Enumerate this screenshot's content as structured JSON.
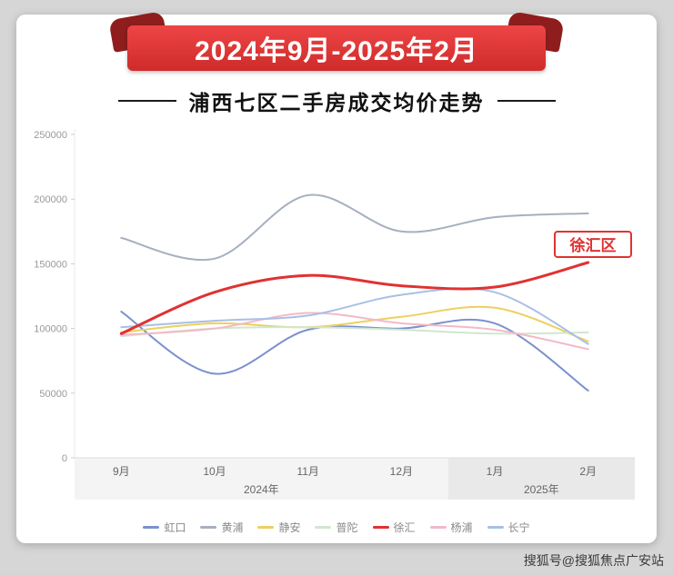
{
  "banner": {
    "text": "2024年9月-2025年2月"
  },
  "title": "浦西七区二手房成交均价走势",
  "annotation": {
    "text": "徐汇区",
    "series": "徐汇"
  },
  "watermark": "搜狐号@搜狐焦点广安站",
  "colors": {
    "banner_light": "#ee4545",
    "banner_dark": "#cf2b2b",
    "banner_fold": "#8f1d1d",
    "accent": "#e03231",
    "page_background": "#d6d6d6"
  },
  "chart_data": {
    "type": "line",
    "x": [
      "9月",
      "10月",
      "11月",
      "12月",
      "1月",
      "2月"
    ],
    "year_labels": [
      "2024年",
      "2025年"
    ],
    "xlabel": "",
    "ylabel": "",
    "ylim": [
      0,
      250000
    ],
    "yticks": [
      0,
      50000,
      100000,
      150000,
      200000,
      250000
    ],
    "grid": false,
    "legend_position": "bottom",
    "series": [
      {
        "name": "虹口",
        "key": "hongkou",
        "color": "#7b90ce",
        "width": 2,
        "values": [
          113000,
          65000,
          99000,
          100000,
          104000,
          52000
        ]
      },
      {
        "name": "黄浦",
        "key": "huangpu",
        "color": "#a6b0bf",
        "width": 2,
        "values": [
          170000,
          154000,
          203000,
          175000,
          186000,
          189000
        ]
      },
      {
        "name": "静安",
        "key": "jingan",
        "color": "#edd05e",
        "width": 2,
        "values": [
          97000,
          104000,
          101000,
          109000,
          116000,
          90000
        ]
      },
      {
        "name": "普陀",
        "key": "putuo",
        "color": "#cfe7cf",
        "width": 2,
        "values": [
          94000,
          100000,
          101000,
          99000,
          96000,
          97000
        ]
      },
      {
        "name": "徐汇",
        "key": "xuhui",
        "color": "#e03231",
        "width": 3,
        "values": [
          96000,
          128000,
          141000,
          133000,
          132000,
          151000
        ]
      },
      {
        "name": "杨浦",
        "key": "yangpu",
        "color": "#f3b9c7",
        "width": 2,
        "values": [
          95000,
          100000,
          112000,
          104000,
          99000,
          84000
        ]
      },
      {
        "name": "长宁",
        "key": "changning",
        "color": "#aabfe6",
        "width": 2,
        "values": [
          101000,
          106000,
          110000,
          126000,
          128000,
          88000
        ]
      }
    ]
  }
}
